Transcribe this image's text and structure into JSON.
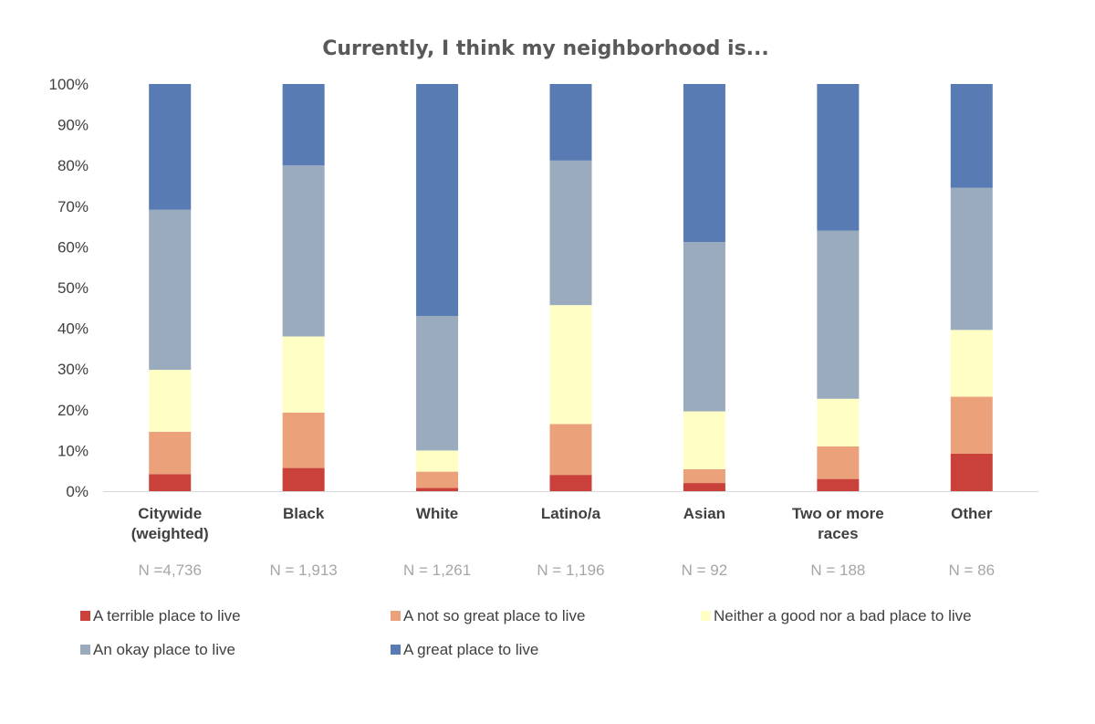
{
  "chart_data": {
    "type": "bar",
    "stacked": true,
    "title": "Currently, I think my neighborhood is...",
    "xlabel": "",
    "ylabel": "",
    "ylim": [
      0,
      100
    ],
    "ytick_labels": [
      "0%",
      "10%",
      "20%",
      "30%",
      "40%",
      "50%",
      "60%",
      "70%",
      "80%",
      "90%",
      "100%"
    ],
    "categories": [
      [
        "Citywide",
        "(weighted)"
      ],
      [
        "Black"
      ],
      [
        "White"
      ],
      [
        "Latino/a"
      ],
      [
        "Asian"
      ],
      [
        "Two or more",
        "races"
      ],
      [
        "Other"
      ]
    ],
    "n_labels": [
      "N =4,736",
      "N = 1,913",
      "N = 1,261",
      "N = 1,196",
      "N = 92",
      "N = 188",
      "N = 86"
    ],
    "series": [
      {
        "name": "A terrible place to live",
        "color": "#c9413a",
        "values": [
          4.2,
          5.7,
          0.8,
          4.0,
          2.0,
          3.0,
          9.2
        ]
      },
      {
        "name": "A not so great place to live",
        "color": "#eba27b",
        "values": [
          10.4,
          13.6,
          4.0,
          12.5,
          3.4,
          8.0,
          14.0
        ]
      },
      {
        "name": "Neither a good nor a bad place to live",
        "color": "#ffffc5",
        "values": [
          15.2,
          18.7,
          5.2,
          29.2,
          14.2,
          11.7,
          16.4
        ]
      },
      {
        "name": "An okay place to live",
        "color": "#9aabbd",
        "values": [
          39.3,
          42.0,
          33.0,
          35.5,
          41.6,
          41.3,
          34.9
        ]
      },
      {
        "name": "A great place to live",
        "color": "#577bb2",
        "values": [
          30.9,
          20.0,
          57.0,
          18.8,
          38.8,
          36.0,
          25.5
        ]
      }
    ],
    "grid": false,
    "legend_position": "bottom"
  }
}
